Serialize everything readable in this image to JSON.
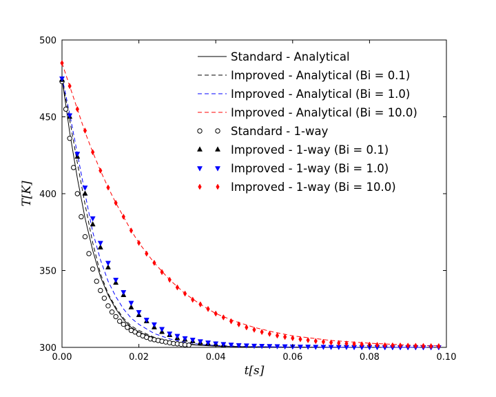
{
  "chart_data": {
    "type": "line",
    "title": "",
    "xlabel": "t[s]",
    "ylabel": "T[K]",
    "xlim": [
      0.0,
      0.1
    ],
    "ylim": [
      300,
      500
    ],
    "xticks": [
      0.0,
      0.02,
      0.04,
      0.06,
      0.08,
      0.1
    ],
    "xtick_labels": [
      "0.00",
      "0.02",
      "0.04",
      "0.06",
      "0.08",
      "0.10"
    ],
    "yticks": [
      300,
      350,
      400,
      450,
      500
    ],
    "ytick_labels": [
      "300",
      "350",
      "400",
      "450",
      "500"
    ],
    "grid": false,
    "legend_position": "top-right",
    "legend_order": [
      "std_an",
      "imp_an_01",
      "imp_an_10",
      "imp_an_100",
      "std_1w",
      "imp_1w_01",
      "imp_1w_10",
      "imp_1w_100"
    ],
    "series": [
      {
        "id": "std_an",
        "name": "Standard - Analytical",
        "style": "line",
        "dash": "solid",
        "color": "#000000",
        "x": [
          0.0,
          0.002,
          0.004,
          0.006,
          0.008,
          0.01,
          0.012,
          0.014,
          0.016,
          0.018,
          0.02,
          0.024,
          0.028,
          0.032,
          0.036,
          0.04,
          0.05,
          0.06,
          0.08,
          0.098
        ],
        "y": [
          475,
          440,
          410,
          384,
          363,
          346,
          334,
          325,
          318,
          313,
          310,
          306,
          303.5,
          302,
          301.3,
          300.8,
          300.3,
          300.1,
          300,
          300
        ]
      },
      {
        "id": "imp_an_01",
        "name": "Improved - Analytical (Bi = 0.1)",
        "style": "line",
        "dash": "dashed",
        "color": "#000000",
        "x": [
          0.0,
          0.002,
          0.004,
          0.006,
          0.008,
          0.01,
          0.012,
          0.014,
          0.016,
          0.018,
          0.02,
          0.024,
          0.028,
          0.032,
          0.036,
          0.04,
          0.05,
          0.06,
          0.08,
          0.098
        ],
        "y": [
          475,
          448,
          420,
          393,
          368,
          348,
          335,
          326,
          319,
          314,
          311,
          306.5,
          304,
          302.3,
          301.5,
          300.9,
          300.3,
          300.1,
          300,
          300
        ]
      },
      {
        "id": "imp_an_10",
        "name": "Improved - Analytical (Bi = 1.0)",
        "style": "line",
        "dash": "dashed",
        "color": "#0000ff",
        "x": [
          0.0,
          0.002,
          0.004,
          0.006,
          0.008,
          0.01,
          0.012,
          0.014,
          0.016,
          0.018,
          0.02,
          0.024,
          0.028,
          0.032,
          0.036,
          0.04,
          0.05,
          0.06,
          0.08,
          0.098
        ],
        "y": [
          476,
          452,
          426,
          400,
          375,
          357,
          343,
          333,
          325,
          319,
          315,
          309,
          305.5,
          303.3,
          302,
          301.2,
          300.5,
          300.2,
          300,
          300
        ]
      },
      {
        "id": "imp_an_100",
        "name": "Improved - Analytical (Bi = 10.0)",
        "style": "line",
        "dash": "dashed",
        "color": "#ff0000",
        "x": [
          0.0,
          0.002,
          0.004,
          0.006,
          0.008,
          0.01,
          0.012,
          0.014,
          0.016,
          0.018,
          0.02,
          0.024,
          0.028,
          0.032,
          0.036,
          0.04,
          0.045,
          0.05,
          0.055,
          0.06,
          0.07,
          0.08,
          0.09,
          0.098
        ],
        "y": [
          485,
          470,
          455,
          440,
          427,
          415,
          404,
          394,
          385,
          376,
          368,
          355,
          344,
          335,
          328,
          322,
          317,
          313,
          310,
          307.5,
          304.5,
          302.7,
          301.5,
          301
        ]
      },
      {
        "id": "std_1w",
        "name": "Standard - 1-way",
        "style": "marker",
        "marker": "circle-open",
        "color": "#000000",
        "x": [
          0.0,
          0.001,
          0.002,
          0.003,
          0.004,
          0.005,
          0.006,
          0.007,
          0.008,
          0.009,
          0.01,
          0.011,
          0.012,
          0.013,
          0.014,
          0.015,
          0.016,
          0.017,
          0.018,
          0.019,
          0.02,
          0.021,
          0.022,
          0.023,
          0.024,
          0.025,
          0.026,
          0.027,
          0.028,
          0.029,
          0.03,
          0.031,
          0.032,
          0.033
        ],
        "y": [
          473,
          455,
          436,
          417,
          400,
          385,
          372,
          361,
          351,
          343,
          337,
          332,
          327,
          323,
          320,
          317,
          315,
          313,
          311,
          310,
          308.5,
          307.5,
          306.5,
          305.5,
          305,
          304.5,
          304,
          303.5,
          303,
          302.5,
          302.3,
          302,
          301.7,
          301.5
        ]
      },
      {
        "id": "imp_1w_01",
        "name": "Improved - 1-way (Bi = 0.1)",
        "style": "marker",
        "marker": "triangle-up",
        "color": "#000000",
        "x": [
          0.0,
          0.002,
          0.004,
          0.006,
          0.008,
          0.01,
          0.012,
          0.014,
          0.016,
          0.018,
          0.02,
          0.022,
          0.024,
          0.026,
          0.028,
          0.03,
          0.032,
          0.034,
          0.036,
          0.038,
          0.04,
          0.042
        ],
        "y": [
          474,
          450,
          424,
          400,
          380,
          365,
          352,
          342,
          334,
          326,
          321,
          317,
          313,
          310,
          308,
          306,
          305,
          304,
          303,
          302.5,
          302,
          301.5
        ]
      },
      {
        "id": "imp_1w_10",
        "name": "Improved - 1-way (Bi = 1.0)",
        "style": "marker",
        "marker": "triangle-down",
        "color": "#0000ff",
        "x": [
          0.0,
          0.002,
          0.004,
          0.006,
          0.008,
          0.01,
          0.012,
          0.014,
          0.016,
          0.018,
          0.02,
          0.022,
          0.024,
          0.026,
          0.028,
          0.03,
          0.032,
          0.034,
          0.036,
          0.038,
          0.04,
          0.042,
          0.044,
          0.046,
          0.048,
          0.05,
          0.052,
          0.054,
          0.056,
          0.058,
          0.06,
          0.062,
          0.064,
          0.066,
          0.068,
          0.07,
          0.072,
          0.074,
          0.076,
          0.078,
          0.08,
          0.082,
          0.084,
          0.086,
          0.088,
          0.09,
          0.092,
          0.094,
          0.096,
          0.098
        ],
        "y": [
          475,
          451,
          426,
          404,
          384,
          368,
          355,
          344,
          336,
          329,
          323,
          318,
          315,
          312,
          309,
          307.5,
          306,
          305,
          304,
          303.2,
          302.6,
          302.2,
          301.8,
          301.5,
          301.3,
          301.1,
          301,
          300.9,
          300.8,
          300.7,
          300.6,
          300.5,
          300.5,
          300.4,
          300.4,
          300.3,
          300.3,
          300.3,
          300.2,
          300.2,
          300.2,
          300.2,
          300.1,
          300.1,
          300.1,
          300.1,
          300.1,
          300.1,
          300.1,
          300.1
        ]
      },
      {
        "id": "imp_1w_100",
        "name": "Improved - 1-way (Bi = 10.0)",
        "style": "marker",
        "marker": "diamond",
        "color": "#ff0000",
        "x": [
          0.0,
          0.002,
          0.004,
          0.006,
          0.008,
          0.01,
          0.012,
          0.014,
          0.016,
          0.018,
          0.02,
          0.022,
          0.024,
          0.026,
          0.028,
          0.03,
          0.032,
          0.034,
          0.036,
          0.038,
          0.04,
          0.042,
          0.044,
          0.046,
          0.048,
          0.05,
          0.052,
          0.054,
          0.056,
          0.058,
          0.06,
          0.062,
          0.064,
          0.066,
          0.068,
          0.07,
          0.072,
          0.074,
          0.076,
          0.078,
          0.08,
          0.082,
          0.084,
          0.086,
          0.088,
          0.09,
          0.092,
          0.094,
          0.096,
          0.098
        ],
        "y": [
          485,
          470,
          455,
          441,
          427,
          415,
          404,
          394,
          385,
          376,
          368,
          361,
          355,
          349,
          344,
          339,
          335,
          331,
          328,
          325,
          322,
          319.5,
          317,
          315,
          313,
          311.5,
          310,
          308.8,
          307.7,
          306.8,
          306,
          305.3,
          304.7,
          304.1,
          303.6,
          303.2,
          302.8,
          302.5,
          302.2,
          302,
          301.8,
          301.6,
          301.4,
          301.3,
          301.2,
          301.1,
          301,
          300.9,
          300.8,
          300.8
        ]
      }
    ]
  }
}
